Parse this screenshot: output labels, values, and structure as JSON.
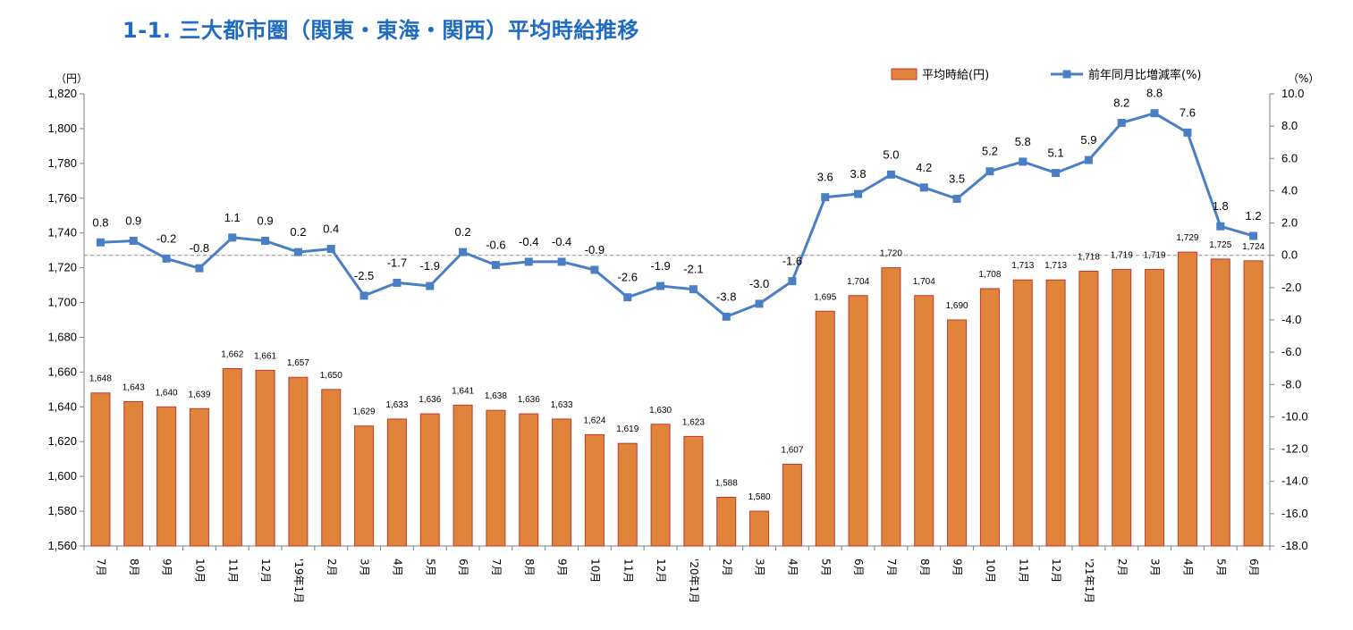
{
  "title": "1-1.  三大都市圏（関東・東海・関西）平均時給推移",
  "colors": {
    "bar": "#e0843c",
    "bar_stroke": "#c0392b",
    "line": "#4a7fc6",
    "title": "#1f6bc2"
  },
  "chart_data": {
    "type": "bar+line",
    "title": "1-1.  三大都市圏（関東・東海・関西）平均時給推移",
    "categories": [
      "7月",
      "8月",
      "9月",
      "10月",
      "11月",
      "12月",
      "'19年1月",
      "2月",
      "3月",
      "4月",
      "5月",
      "6月",
      "7月",
      "8月",
      "9月",
      "10月",
      "11月",
      "12月",
      "'20年1月",
      "2月",
      "3月",
      "4月",
      "5月",
      "6月",
      "7月",
      "8月",
      "9月",
      "10月",
      "11月",
      "12月",
      "'21年1月",
      "2月",
      "3月",
      "4月",
      "5月",
      "6月"
    ],
    "series": [
      {
        "name": "平均時給(円)",
        "type": "bar",
        "axis": "left",
        "values": [
          1648,
          1643,
          1640,
          1639,
          1662,
          1661,
          1657,
          1650,
          1629,
          1633,
          1636,
          1641,
          1638,
          1636,
          1633,
          1624,
          1619,
          1630,
          1623,
          1588,
          1580,
          1607,
          1695,
          1704,
          1720,
          1704,
          1690,
          1708,
          1713,
          1713,
          1718,
          1719,
          1719,
          1729,
          1725,
          1724
        ]
      },
      {
        "name": "前年同月比増減率(%)",
        "type": "line",
        "axis": "right",
        "values": [
          0.8,
          0.9,
          -0.2,
          -0.8,
          1.1,
          0.9,
          0.2,
          0.4,
          -2.5,
          -1.7,
          -1.9,
          0.2,
          -0.6,
          -0.4,
          -0.4,
          -0.9,
          -2.6,
          -1.9,
          -2.1,
          -3.8,
          -3.0,
          -1.6,
          3.6,
          3.8,
          5.0,
          4.2,
          3.5,
          5.2,
          5.8,
          5.1,
          5.9,
          8.2,
          8.8,
          7.6,
          1.8,
          1.2
        ]
      }
    ],
    "bar_labels": [
      "1,648",
      "1,643",
      "1,640",
      "1,639",
      "1,662",
      "1,661",
      "1,657",
      "1,650",
      "1,629",
      "1,633",
      "1,636",
      "1,641",
      "1,638",
      "1,636",
      "1,633",
      "1,624",
      "1,619",
      "1,630",
      "1,623",
      "1,588",
      "1,580",
      "1,607",
      "1,695",
      "1,704",
      "1,720",
      "1,704",
      "1,690",
      "1,708",
      "1,713",
      "1,713",
      "1,718",
      "1,719",
      "1,719",
      "1,729",
      "1,725",
      "1,724"
    ],
    "line_labels": [
      "0.8",
      "0.9",
      "-0.2",
      "-0.8",
      "1.1",
      "0.9",
      "0.2",
      "0.4",
      "-2.5",
      "-1.7",
      "-1.9",
      "0.2",
      "-0.6",
      "-0.4",
      "-0.4",
      "-0.9",
      "-2.6",
      "-1.9",
      "-2.1",
      "-3.8",
      "-3.0",
      "-1.6",
      "3.6",
      "3.8",
      "5.0",
      "4.2",
      "3.5",
      "5.2",
      "5.8",
      "5.1",
      "5.9",
      "8.2",
      "8.8",
      "7.6",
      "1.8",
      "1.2"
    ],
    "left_axis": {
      "unit": "（円）",
      "ylim": [
        1560,
        1820
      ],
      "ticks": [
        1560,
        1580,
        1600,
        1620,
        1640,
        1660,
        1680,
        1700,
        1720,
        1740,
        1760,
        1780,
        1800,
        1820
      ],
      "tick_labels": [
        "1,560",
        "1,580",
        "1,600",
        "1,620",
        "1,640",
        "1,660",
        "1,680",
        "1,700",
        "1,720",
        "1,740",
        "1,760",
        "1,780",
        "1,800",
        "1,820"
      ]
    },
    "right_axis": {
      "unit": "（%）",
      "ylim": [
        -18,
        10
      ],
      "ticks": [
        -18,
        -16,
        -14,
        -12,
        -10,
        -8,
        -6,
        -4,
        -2,
        0,
        2,
        4,
        6,
        8,
        10
      ],
      "tick_labels": [
        "-18.0",
        "-16.0",
        "-14.0",
        "-12.0",
        "-10.0",
        "-8.0",
        "-6.0",
        "-4.0",
        "-2.0",
        "0.0",
        "2.0",
        "4.0",
        "6.0",
        "8.0",
        "10.0"
      ]
    },
    "zero_reference_line": "dashed",
    "grid": false,
    "legend": {
      "placement": "top-right",
      "entries": [
        "平均時給(円)",
        "前年同月比増減率(%)"
      ]
    }
  }
}
